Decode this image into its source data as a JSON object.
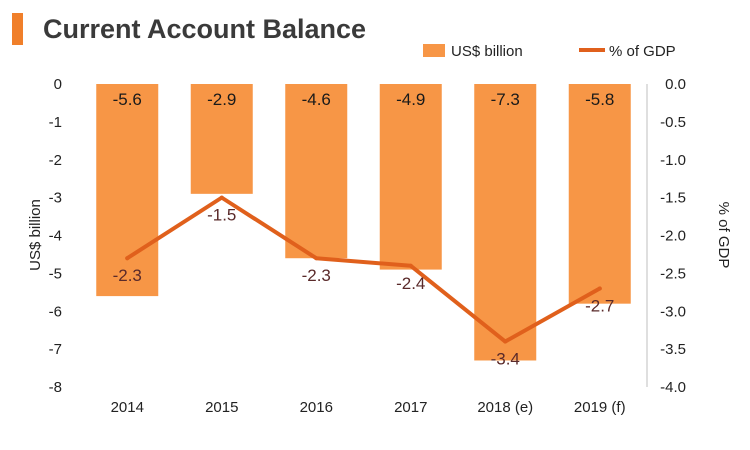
{
  "chart_data": {
    "type": "bar",
    "title": "Current Account Balance",
    "categories": [
      "2014",
      "2015",
      "2016",
      "2017",
      "2018 (e)",
      "2019 (f)"
    ],
    "series": [
      {
        "name": "US$ billion",
        "type": "bar",
        "axis": "left",
        "values": [
          -5.6,
          -2.9,
          -4.6,
          -4.9,
          -7.3,
          -5.8
        ]
      },
      {
        "name": "% of GDP",
        "type": "line",
        "axis": "right",
        "values": [
          -2.3,
          -1.5,
          -2.3,
          -2.4,
          -3.4,
          -2.7
        ]
      }
    ],
    "ylabel": "US$ billion",
    "ylim": [
      -8,
      0
    ],
    "y_ticks": [
      "0",
      "-1",
      "-2",
      "-3",
      "-4",
      "-5",
      "-6",
      "-7",
      "-8"
    ],
    "y2label": "% of GDP",
    "y2lim": [
      -4.0,
      0.0
    ],
    "y2_ticks": [
      "0.0",
      "-0.5",
      "-1.0",
      "-1.5",
      "-2.0",
      "-2.5",
      "-3.0",
      "-3.5",
      "-4.0"
    ],
    "grid": false,
    "legend_position": "top-right"
  },
  "colors": {
    "bar": "#f79646",
    "line": "#e0601c",
    "title_accent": "#f07f2a",
    "axis": "#bfbfbf"
  }
}
